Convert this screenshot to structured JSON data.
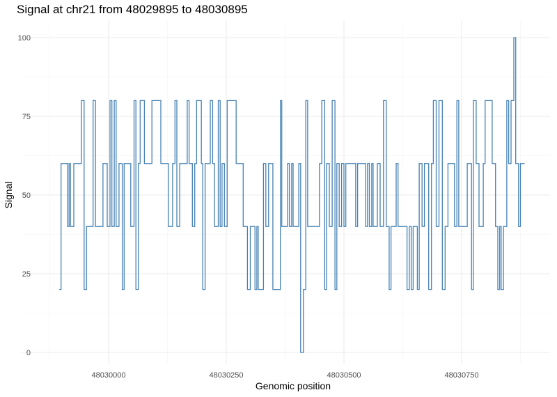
{
  "chart_data": {
    "type": "line",
    "subtype": "step",
    "title": "Signal at chr21 from 48029895 to 48030895",
    "xlabel": "Genomic position",
    "ylabel": "Signal",
    "xlim": [
      48029895,
      48030895
    ],
    "ylim": [
      0,
      100
    ],
    "x_ticks": [
      48030000,
      48030250,
      48030500,
      48030750
    ],
    "x_tick_labels": [
      "48030000",
      "48030250",
      "48030500",
      "48030750"
    ],
    "y_ticks": [
      0,
      25,
      50,
      75,
      100
    ],
    "y_tick_labels": [
      "0",
      "25",
      "50",
      "75",
      "100"
    ],
    "grid": true,
    "legend": null,
    "line_color": "#4682B4",
    "series": [
      {
        "name": "Signal",
        "steps": [
          [
            48029895,
            20
          ],
          [
            48029899,
            60
          ],
          [
            48029913,
            40
          ],
          [
            48029916,
            60
          ],
          [
            48029919,
            40
          ],
          [
            48029926,
            60
          ],
          [
            48029942,
            80
          ],
          [
            48029948,
            20
          ],
          [
            48029953,
            40
          ],
          [
            48029967,
            80
          ],
          [
            48029972,
            40
          ],
          [
            48029988,
            60
          ],
          [
            48029997,
            40
          ],
          [
            48030003,
            80
          ],
          [
            48030007,
            40
          ],
          [
            48030012,
            80
          ],
          [
            48030016,
            40
          ],
          [
            48030022,
            60
          ],
          [
            48030029,
            20
          ],
          [
            48030033,
            60
          ],
          [
            48030047,
            40
          ],
          [
            48030054,
            80
          ],
          [
            48030058,
            20
          ],
          [
            48030063,
            60
          ],
          [
            48030067,
            80
          ],
          [
            48030076,
            60
          ],
          [
            48030092,
            80
          ],
          [
            48030111,
            60
          ],
          [
            48030127,
            40
          ],
          [
            48030136,
            60
          ],
          [
            48030141,
            80
          ],
          [
            48030145,
            40
          ],
          [
            48030151,
            60
          ],
          [
            48030167,
            80
          ],
          [
            48030171,
            60
          ],
          [
            48030178,
            40
          ],
          [
            48030183,
            60
          ],
          [
            48030187,
            80
          ],
          [
            48030197,
            60
          ],
          [
            48030200,
            20
          ],
          [
            48030205,
            60
          ],
          [
            48030216,
            80
          ],
          [
            48030221,
            60
          ],
          [
            48030225,
            40
          ],
          [
            48030233,
            80
          ],
          [
            48030237,
            40
          ],
          [
            48030241,
            60
          ],
          [
            48030246,
            40
          ],
          [
            48030252,
            80
          ],
          [
            48030271,
            60
          ],
          [
            48030286,
            40
          ],
          [
            48030295,
            20
          ],
          [
            48030301,
            40
          ],
          [
            48030311,
            20
          ],
          [
            48030315,
            40
          ],
          [
            48030318,
            20
          ],
          [
            48030329,
            60
          ],
          [
            48030334,
            40
          ],
          [
            48030340,
            60
          ],
          [
            48030349,
            20
          ],
          [
            48030365,
            80
          ],
          [
            48030368,
            40
          ],
          [
            48030380,
            60
          ],
          [
            48030384,
            40
          ],
          [
            48030389,
            60
          ],
          [
            48030392,
            40
          ],
          [
            48030404,
            60
          ],
          [
            48030408,
            0
          ],
          [
            48030414,
            20
          ],
          [
            48030419,
            80
          ],
          [
            48030423,
            40
          ],
          [
            48030448,
            60
          ],
          [
            48030453,
            80
          ],
          [
            48030459,
            20
          ],
          [
            48030463,
            60
          ],
          [
            48030469,
            40
          ],
          [
            48030475,
            80
          ],
          [
            48030481,
            20
          ],
          [
            48030485,
            60
          ],
          [
            48030490,
            40
          ],
          [
            48030495,
            60
          ],
          [
            48030500,
            40
          ],
          [
            48030504,
            60
          ],
          [
            48030525,
            40
          ],
          [
            48030529,
            60
          ],
          [
            48030546,
            40
          ],
          [
            48030550,
            60
          ],
          [
            48030554,
            40
          ],
          [
            48030559,
            60
          ],
          [
            48030562,
            40
          ],
          [
            48030571,
            60
          ],
          [
            48030577,
            40
          ],
          [
            48030584,
            80
          ],
          [
            48030590,
            40
          ],
          [
            48030596,
            20
          ],
          [
            48030600,
            40
          ],
          [
            48030611,
            60
          ],
          [
            48030615,
            40
          ],
          [
            48030634,
            20
          ],
          [
            48030639,
            40
          ],
          [
            48030643,
            20
          ],
          [
            48030647,
            40
          ],
          [
            48030656,
            20
          ],
          [
            48030660,
            60
          ],
          [
            48030666,
            40
          ],
          [
            48030671,
            60
          ],
          [
            48030680,
            20
          ],
          [
            48030686,
            60
          ],
          [
            48030690,
            80
          ],
          [
            48030696,
            40
          ],
          [
            48030702,
            80
          ],
          [
            48030709,
            20
          ],
          [
            48030715,
            40
          ],
          [
            48030721,
            60
          ],
          [
            48030735,
            40
          ],
          [
            48030740,
            80
          ],
          [
            48030744,
            40
          ],
          [
            48030762,
            60
          ],
          [
            48030771,
            20
          ],
          [
            48030775,
            80
          ],
          [
            48030781,
            60
          ],
          [
            48030787,
            40
          ],
          [
            48030796,
            60
          ],
          [
            48030800,
            80
          ],
          [
            48030815,
            60
          ],
          [
            48030822,
            40
          ],
          [
            48030827,
            20
          ],
          [
            48030831,
            40
          ],
          [
            48030834,
            20
          ],
          [
            48030839,
            40
          ],
          [
            48030846,
            80
          ],
          [
            48030850,
            60
          ],
          [
            48030855,
            80
          ],
          [
            48030861,
            100
          ],
          [
            48030865,
            60
          ],
          [
            48030871,
            40
          ],
          [
            48030875,
            60
          ],
          [
            48030884,
            60
          ]
        ]
      }
    ]
  }
}
